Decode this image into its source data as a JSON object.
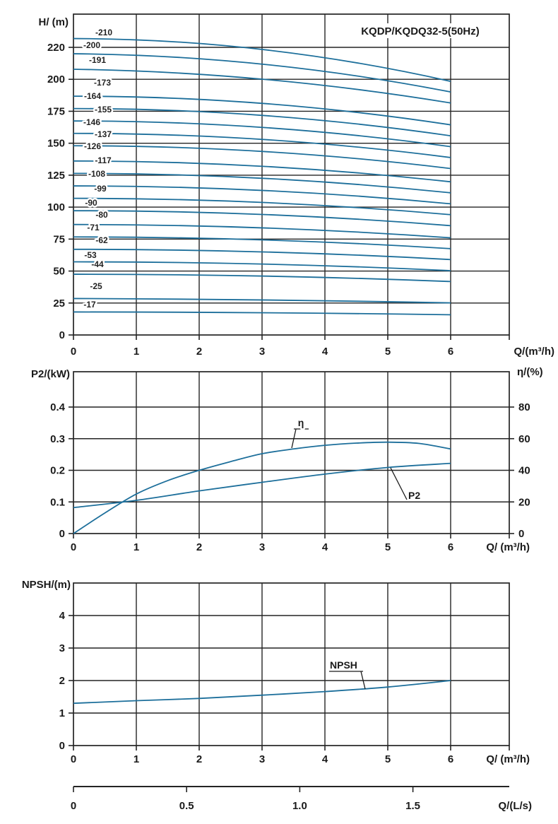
{
  "figure_title": "KQDP/KQDQ32-5(50Hz)",
  "colors": {
    "curve": "#1d6f9b",
    "grid": "#242424",
    "text": "#1a1a1a",
    "background": "#ffffff"
  },
  "chart_data": [
    {
      "id": "head-capacity",
      "type": "line",
      "title": "KQDP/KQDQ32-5(50Hz)",
      "ylabel": "H/ (m)",
      "xlabel": "Q/(m³/h)",
      "x_ticks": [
        0,
        1,
        2,
        3,
        4,
        5,
        6
      ],
      "y_ticks": [
        220,
        200,
        175,
        150,
        125,
        100,
        75,
        50,
        25,
        0
      ],
      "xlim": [
        0,
        6.93
      ],
      "ylim": [
        0,
        241
      ],
      "grid": true,
      "legend": "inline curve labels",
      "series": [
        {
          "name": "-210",
          "points": [
            [
              0,
              225.5
            ],
            [
              3,
              218.7
            ],
            [
              6,
              198.4
            ]
          ]
        },
        {
          "name": "-200",
          "points": [
            [
              0,
              216.0
            ],
            [
              3,
              209.5
            ],
            [
              6,
              190.1
            ]
          ]
        },
        {
          "name": "-191",
          "points": [
            [
              0,
              206.3
            ],
            [
              3,
              200.1
            ],
            [
              6,
              181.5
            ]
          ]
        },
        {
          "name": "-173",
          "points": [
            [
              0,
              186.8
            ],
            [
              3,
              181.2
            ],
            [
              6,
              164.4
            ]
          ]
        },
        {
          "name": "-164",
          "points": [
            [
              0,
              177.1
            ],
            [
              3,
              171.8
            ],
            [
              6,
              155.8
            ]
          ]
        },
        {
          "name": "-155",
          "points": [
            [
              0,
              167.4
            ],
            [
              3,
              162.4
            ],
            [
              6,
              147.3
            ]
          ]
        },
        {
          "name": "-146",
          "points": [
            [
              0,
              157.7
            ],
            [
              3,
              153.0
            ],
            [
              6,
              138.8
            ]
          ]
        },
        {
          "name": "-137",
          "points": [
            [
              0,
              148.0
            ],
            [
              3,
              143.6
            ],
            [
              6,
              130.2
            ]
          ]
        },
        {
          "name": "-126",
          "points": [
            [
              0,
              136.1
            ],
            [
              3,
              132.0
            ],
            [
              6,
              119.8
            ]
          ]
        },
        {
          "name": "-117",
          "points": [
            [
              0,
              126.4
            ],
            [
              3,
              122.6
            ],
            [
              6,
              111.2
            ]
          ]
        },
        {
          "name": "-108",
          "points": [
            [
              0,
              116.6
            ],
            [
              3,
              113.1
            ],
            [
              6,
              102.6
            ]
          ]
        },
        {
          "name": "-99",
          "points": [
            [
              0,
              106.9
            ],
            [
              3,
              103.7
            ],
            [
              6,
              94.1
            ]
          ]
        },
        {
          "name": "-90",
          "points": [
            [
              0,
              97.2
            ],
            [
              3,
              94.3
            ],
            [
              6,
              85.5
            ]
          ]
        },
        {
          "name": "-80",
          "points": [
            [
              0,
              86.4
            ],
            [
              3,
              83.8
            ],
            [
              6,
              76.0
            ]
          ]
        },
        {
          "name": "-71",
          "points": [
            [
              0,
              76.7
            ],
            [
              3,
              74.4
            ],
            [
              6,
              67.5
            ]
          ]
        },
        {
          "name": "-62",
          "points": [
            [
              0,
              67.0
            ],
            [
              3,
              65.0
            ],
            [
              6,
              59.0
            ]
          ]
        },
        {
          "name": "-53",
          "points": [
            [
              0,
              57.2
            ],
            [
              3,
              55.5
            ],
            [
              6,
              50.3
            ]
          ]
        },
        {
          "name": "-44",
          "points": [
            [
              0,
              47.5
            ],
            [
              3,
              46.1
            ],
            [
              6,
              41.8
            ]
          ]
        },
        {
          "name": "-25",
          "points": [
            [
              0,
              28.5
            ],
            [
              3,
              27.4
            ],
            [
              6,
              25.1
            ]
          ]
        },
        {
          "name": "-17",
          "points": [
            [
              0,
              18.0
            ],
            [
              3,
              17.4
            ],
            [
              6,
              15.8
            ]
          ]
        }
      ]
    },
    {
      "id": "power-efficiency",
      "type": "line",
      "ylabel_left": "P2/(kW)",
      "ylabel_right": "η/(%)",
      "xlabel": "Q/ (m³/h)",
      "x_ticks": [
        0,
        1,
        2,
        3,
        4,
        5,
        6
      ],
      "y_ticks_left": [
        0.4,
        0.3,
        0.2,
        0.1,
        0
      ],
      "y_ticks_right": [
        80,
        60,
        40,
        20,
        0
      ],
      "xlim": [
        0,
        6.93
      ],
      "ylim_left": [
        0,
        0.51
      ],
      "ylim_right": [
        0,
        102
      ],
      "grid": true,
      "series": [
        {
          "name": "η",
          "axis": "right",
          "unit": "%",
          "points": [
            [
              0,
              0
            ],
            [
              0.5,
              13
            ],
            [
              1,
              25
            ],
            [
              1.5,
              33.5
            ],
            [
              2,
              40
            ],
            [
              2.5,
              45.5
            ],
            [
              3,
              50.5
            ],
            [
              3.5,
              53.5
            ],
            [
              4,
              55.8
            ],
            [
              4.5,
              57.2
            ],
            [
              5,
              57.8
            ],
            [
              5.5,
              57.0
            ],
            [
              6,
              53.5
            ]
          ]
        },
        {
          "name": "P2",
          "axis": "left",
          "unit": "kW",
          "points": [
            [
              0,
              0.082
            ],
            [
              1,
              0.105
            ],
            [
              2,
              0.135
            ],
            [
              3,
              0.162
            ],
            [
              4,
              0.188
            ],
            [
              5,
              0.209
            ],
            [
              6,
              0.222
            ]
          ]
        }
      ]
    },
    {
      "id": "npsh",
      "type": "line",
      "ylabel": "NPSH/(m)",
      "xlabel": "Q/ (m³/h)",
      "x_ticks": [
        0,
        1,
        2,
        3,
        4,
        5,
        6
      ],
      "y_ticks": [
        4,
        3,
        2,
        1,
        0
      ],
      "xlim": [
        0,
        6.93
      ],
      "ylim": [
        0,
        5
      ],
      "grid": true,
      "series": [
        {
          "name": "NPSH",
          "unit": "m",
          "points": [
            [
              0,
              1.3
            ],
            [
              1,
              1.38
            ],
            [
              2,
              1.45
            ],
            [
              3,
              1.55
            ],
            [
              4,
              1.66
            ],
            [
              5,
              1.8
            ],
            [
              6,
              2.0
            ]
          ]
        }
      ]
    },
    {
      "id": "flow-liters-axis",
      "type": "axis",
      "xlabel": "Q/(L/s)",
      "x_tick_labels": [
        "0",
        "0.5",
        "1.0",
        "1.5"
      ],
      "x_tick_values": [
        0,
        0.5,
        1.0,
        1.5
      ],
      "conversion": "1 L/s = 3.6 m³/h"
    }
  ]
}
